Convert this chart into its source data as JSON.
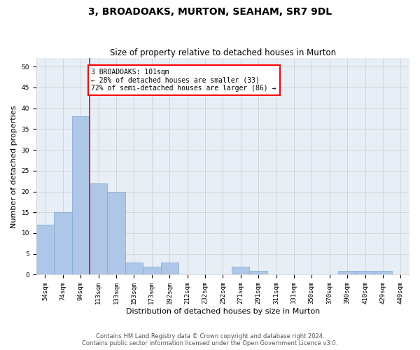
{
  "title": "3, BROADOAKS, MURTON, SEAHAM, SR7 9DL",
  "subtitle": "Size of property relative to detached houses in Murton",
  "xlabel": "Distribution of detached houses by size in Murton",
  "ylabel": "Number of detached properties",
  "categories": [
    "54sqm",
    "74sqm",
    "94sqm",
    "113sqm",
    "133sqm",
    "153sqm",
    "173sqm",
    "192sqm",
    "212sqm",
    "232sqm",
    "252sqm",
    "271sqm",
    "291sqm",
    "311sqm",
    "331sqm",
    "350sqm",
    "370sqm",
    "390sqm",
    "410sqm",
    "429sqm",
    "449sqm"
  ],
  "values": [
    12,
    15,
    38,
    22,
    20,
    3,
    2,
    3,
    0,
    0,
    0,
    2,
    1,
    0,
    0,
    0,
    0,
    1,
    1,
    1,
    0
  ],
  "bar_color": "#aec6e8",
  "bar_edge_color": "#7aaad0",
  "red_line_x": 2.5,
  "annotation_text": "3 BROADOAKS: 101sqm\n← 28% of detached houses are smaller (33)\n72% of semi-detached houses are larger (86) →",
  "annotation_box_color": "white",
  "annotation_box_edge": "red",
  "ylim": [
    0,
    52
  ],
  "yticks": [
    0,
    5,
    10,
    15,
    20,
    25,
    30,
    35,
    40,
    45,
    50
  ],
  "footer1": "Contains HM Land Registry data © Crown copyright and database right 2024.",
  "footer2": "Contains public sector information licensed under the Open Government Licence v3.0.",
  "grid_color": "#cccccc",
  "background_color": "#e8eef5",
  "title_fontsize": 10,
  "subtitle_fontsize": 8.5,
  "ylabel_fontsize": 8,
  "xlabel_fontsize": 8,
  "tick_fontsize": 6.5,
  "annotation_fontsize": 7,
  "footer_fontsize": 6
}
